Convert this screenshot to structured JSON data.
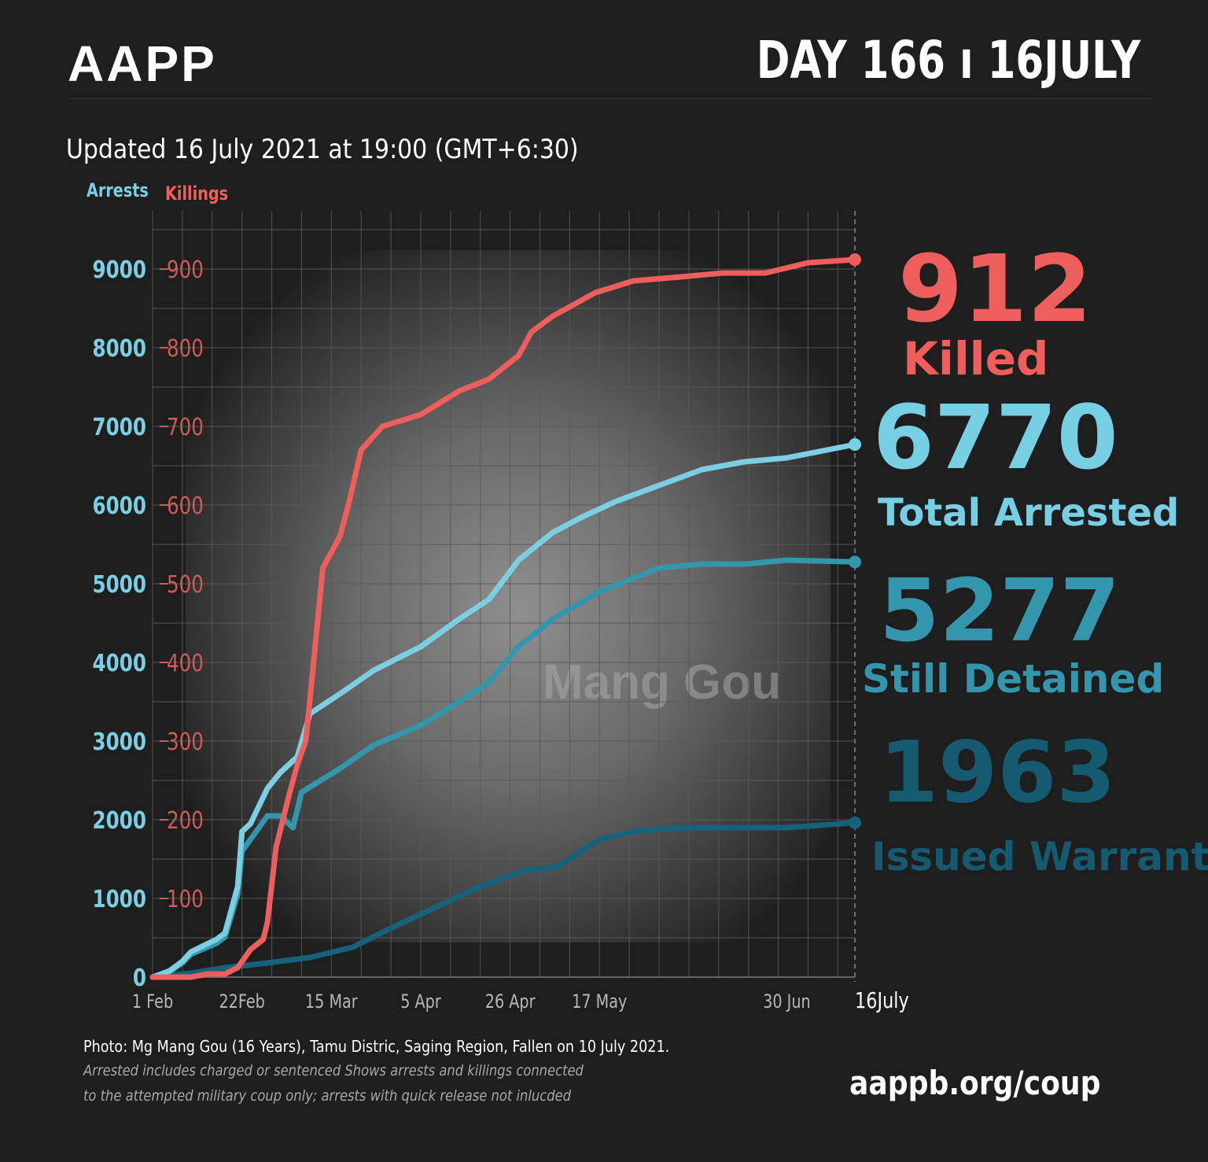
{
  "header": {
    "brand": "AAPP",
    "day": "DAY 166 ı 16JULY",
    "updated": "Updated 16 July 2021 at 19:00 (GMT+6:30)"
  },
  "legend": {
    "arrests": "Arrests",
    "killings": "Killings"
  },
  "photo": {
    "watermark": "Mang Gou"
  },
  "stats": {
    "killed": {
      "value": "912",
      "label": "Killed"
    },
    "arrested": {
      "value": "6770",
      "label": "Total Arrested"
    },
    "detained": {
      "value": "5277",
      "label": "Still Detained"
    },
    "warrant": {
      "value": "1963",
      "label": "Issued Warrant"
    }
  },
  "footer": {
    "photo_caption": "Photo:  Mg Mang Gou (16 Years), Tamu Distric, Saging Region, Fallen on 10 July 2021.",
    "note_line1": "Arrested includes charged or sentenced Shows arrests and killings connected",
    "note_line2": "to the attempted military coup only; arrests with quick release not inlucded",
    "url": "aappb.org/coup"
  },
  "colors": {
    "killings": "#ee5e5c",
    "arrests": "#7ccfe3",
    "detained": "#3496ad",
    "warrant": "#17627a",
    "left_axis": "#7ccfe3",
    "right_axis": "#cf5b55"
  },
  "chart_data": {
    "type": "line",
    "x_axis": "date",
    "xlim": [
      "2021-02-01",
      "2021-07-16"
    ],
    "x_ticks": [
      "1 Feb",
      "22Feb",
      "15 Mar",
      "5 Apr",
      "26 Apr",
      "17 May",
      "30 Jun",
      "16July"
    ],
    "x_tick_dates": [
      "2021-02-01",
      "2021-02-22",
      "2021-03-15",
      "2021-04-05",
      "2021-04-26",
      "2021-05-17",
      "2021-06-30",
      "2021-07-16"
    ],
    "y_left": {
      "label": "Arrests",
      "lim": [
        0,
        9000
      ],
      "ticks": [
        0,
        1000,
        2000,
        3000,
        4000,
        5000,
        6000,
        7000,
        8000,
        9000
      ]
    },
    "y_right": {
      "label": "Killings",
      "lim": [
        0,
        900
      ],
      "ticks": [
        100,
        200,
        300,
        400,
        500,
        600,
        700,
        800,
        900
      ]
    },
    "grid": true,
    "series": [
      {
        "name": "Killings",
        "axis": "right",
        "points": [
          [
            "2021-02-01",
            0
          ],
          [
            "2021-02-10",
            0
          ],
          [
            "2021-02-12",
            2
          ],
          [
            "2021-02-14",
            4
          ],
          [
            "2021-02-18",
            4
          ],
          [
            "2021-02-21",
            12
          ],
          [
            "2021-02-24",
            35
          ],
          [
            "2021-02-27",
            48
          ],
          [
            "2021-02-28",
            70
          ],
          [
            "2021-03-02",
            165
          ],
          [
            "2021-03-05",
            230
          ],
          [
            "2021-03-07",
            270
          ],
          [
            "2021-03-09",
            300
          ],
          [
            "2021-03-11",
            410
          ],
          [
            "2021-03-13",
            520
          ],
          [
            "2021-03-17",
            560
          ],
          [
            "2021-03-19",
            600
          ],
          [
            "2021-03-22",
            670
          ],
          [
            "2021-03-27",
            700
          ],
          [
            "2021-04-05",
            715
          ],
          [
            "2021-04-14",
            745
          ],
          [
            "2021-04-21",
            760
          ],
          [
            "2021-04-28",
            790
          ],
          [
            "2021-05-01",
            820
          ],
          [
            "2021-05-06",
            840
          ],
          [
            "2021-05-16",
            870
          ],
          [
            "2021-05-25",
            885
          ],
          [
            "2021-06-05",
            890
          ],
          [
            "2021-06-15",
            895
          ],
          [
            "2021-06-25",
            895
          ],
          [
            "2021-07-05",
            908
          ],
          [
            "2021-07-16",
            912
          ]
        ]
      },
      {
        "name": "Total Arrested",
        "axis": "left",
        "points": [
          [
            "2021-02-01",
            0
          ],
          [
            "2021-02-05",
            80
          ],
          [
            "2021-02-08",
            200
          ],
          [
            "2021-02-10",
            320
          ],
          [
            "2021-02-16",
            480
          ],
          [
            "2021-02-18",
            560
          ],
          [
            "2021-02-21",
            1150
          ],
          [
            "2021-02-22",
            1850
          ],
          [
            "2021-02-24",
            1950
          ],
          [
            "2021-02-28",
            2400
          ],
          [
            "2021-03-03",
            2600
          ],
          [
            "2021-03-07",
            2800
          ],
          [
            "2021-03-10",
            3350
          ],
          [
            "2021-03-17",
            3600
          ],
          [
            "2021-03-25",
            3900
          ],
          [
            "2021-04-05",
            4200
          ],
          [
            "2021-04-14",
            4550
          ],
          [
            "2021-04-21",
            4800
          ],
          [
            "2021-04-28",
            5300
          ],
          [
            "2021-05-06",
            5650
          ],
          [
            "2021-05-13",
            5850
          ],
          [
            "2021-05-21",
            6050
          ],
          [
            "2021-05-31",
            6250
          ],
          [
            "2021-06-10",
            6450
          ],
          [
            "2021-06-20",
            6550
          ],
          [
            "2021-06-30",
            6600
          ],
          [
            "2021-07-16",
            6770
          ]
        ]
      },
      {
        "name": "Still Detained",
        "axis": "left",
        "points": [
          [
            "2021-02-01",
            0
          ],
          [
            "2021-02-05",
            70
          ],
          [
            "2021-02-08",
            180
          ],
          [
            "2021-02-10",
            290
          ],
          [
            "2021-02-16",
            430
          ],
          [
            "2021-02-18",
            510
          ],
          [
            "2021-02-21",
            1050
          ],
          [
            "2021-02-22",
            1600
          ],
          [
            "2021-02-24",
            1750
          ],
          [
            "2021-02-28",
            2050
          ],
          [
            "2021-03-03",
            2050
          ],
          [
            "2021-03-06",
            1900
          ],
          [
            "2021-03-08",
            2350
          ],
          [
            "2021-03-17",
            2650
          ],
          [
            "2021-03-25",
            2950
          ],
          [
            "2021-04-05",
            3200
          ],
          [
            "2021-04-14",
            3500
          ],
          [
            "2021-04-21",
            3750
          ],
          [
            "2021-04-28",
            4200
          ],
          [
            "2021-05-06",
            4550
          ],
          [
            "2021-05-17",
            4900
          ],
          [
            "2021-05-31",
            5200
          ],
          [
            "2021-06-10",
            5250
          ],
          [
            "2021-06-20",
            5250
          ],
          [
            "2021-06-30",
            5300
          ],
          [
            "2021-07-16",
            5277
          ]
        ]
      },
      {
        "name": "Issued Warrant",
        "axis": "left",
        "points": [
          [
            "2021-02-01",
            0
          ],
          [
            "2021-02-10",
            50
          ],
          [
            "2021-02-18",
            120
          ],
          [
            "2021-02-28",
            180
          ],
          [
            "2021-03-10",
            250
          ],
          [
            "2021-03-20",
            380
          ],
          [
            "2021-03-30",
            650
          ],
          [
            "2021-04-09",
            900
          ],
          [
            "2021-04-19",
            1150
          ],
          [
            "2021-04-29",
            1350
          ],
          [
            "2021-05-07",
            1400
          ],
          [
            "2021-05-17",
            1750
          ],
          [
            "2021-05-25",
            1850
          ],
          [
            "2021-06-05",
            1900
          ],
          [
            "2021-06-15",
            1900
          ],
          [
            "2021-06-30",
            1900
          ],
          [
            "2021-07-16",
            1963
          ]
        ]
      }
    ]
  }
}
